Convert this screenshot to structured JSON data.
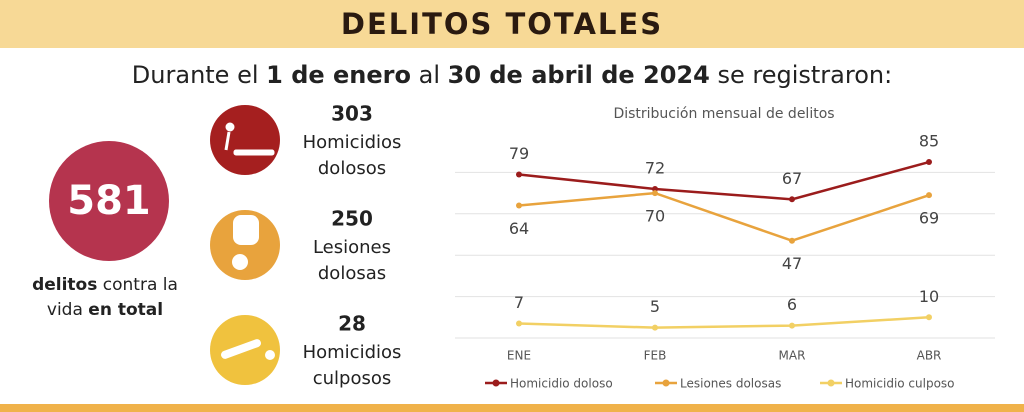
{
  "header": {
    "title": "DELITOS TOTALES"
  },
  "subtitle": [
    {
      "text": "Durante el ",
      "bold": false
    },
    {
      "text": "1 de enero",
      "bold": true
    },
    {
      "text": " al ",
      "bold": false
    },
    {
      "text": "30 de abril de 2024",
      "bold": true
    },
    {
      "text": " se registraron",
      "bold": false
    },
    {
      "text": ":",
      "bold": false
    }
  ],
  "total": {
    "value": "581",
    "color": "#b5344e",
    "caption_lines": [
      [
        {
          "text": "delitos",
          "bold": true
        },
        {
          "text": " contra la",
          "bold": false
        }
      ],
      [
        {
          "text": "vida ",
          "bold": false
        },
        {
          "text": "en total",
          "bold": true
        }
      ]
    ]
  },
  "stats": [
    {
      "value": "303",
      "label_lines": [
        "Homicidios",
        "dolosos"
      ],
      "color": "#a51f1f"
    },
    {
      "value": "250",
      "label_lines": [
        "Lesiones",
        "dolosas"
      ],
      "color": "#e8a33d"
    },
    {
      "value": "28",
      "label_lines": [
        "Homicidios",
        "culposos"
      ],
      "color": "#f0c23e"
    }
  ],
  "chart_data": {
    "type": "line",
    "title": "Distribución mensual de delitos",
    "categories": [
      "ENE",
      "FEB",
      "MAR",
      "ABR"
    ],
    "series": [
      {
        "name": "Homicidio doloso",
        "color": "#9b1c1c",
        "values": [
          79,
          72,
          67,
          85
        ]
      },
      {
        "name": "Lesiones dolosas",
        "color": "#e8a33d",
        "values": [
          64,
          70,
          47,
          69
        ]
      },
      {
        "name": "Homicidio culposo",
        "color": "#f2d064",
        "values": [
          7,
          5,
          6,
          10
        ]
      }
    ],
    "ylim": [
      0,
      100
    ],
    "yticks": [
      0,
      20,
      40,
      60,
      80
    ],
    "grid": true
  }
}
